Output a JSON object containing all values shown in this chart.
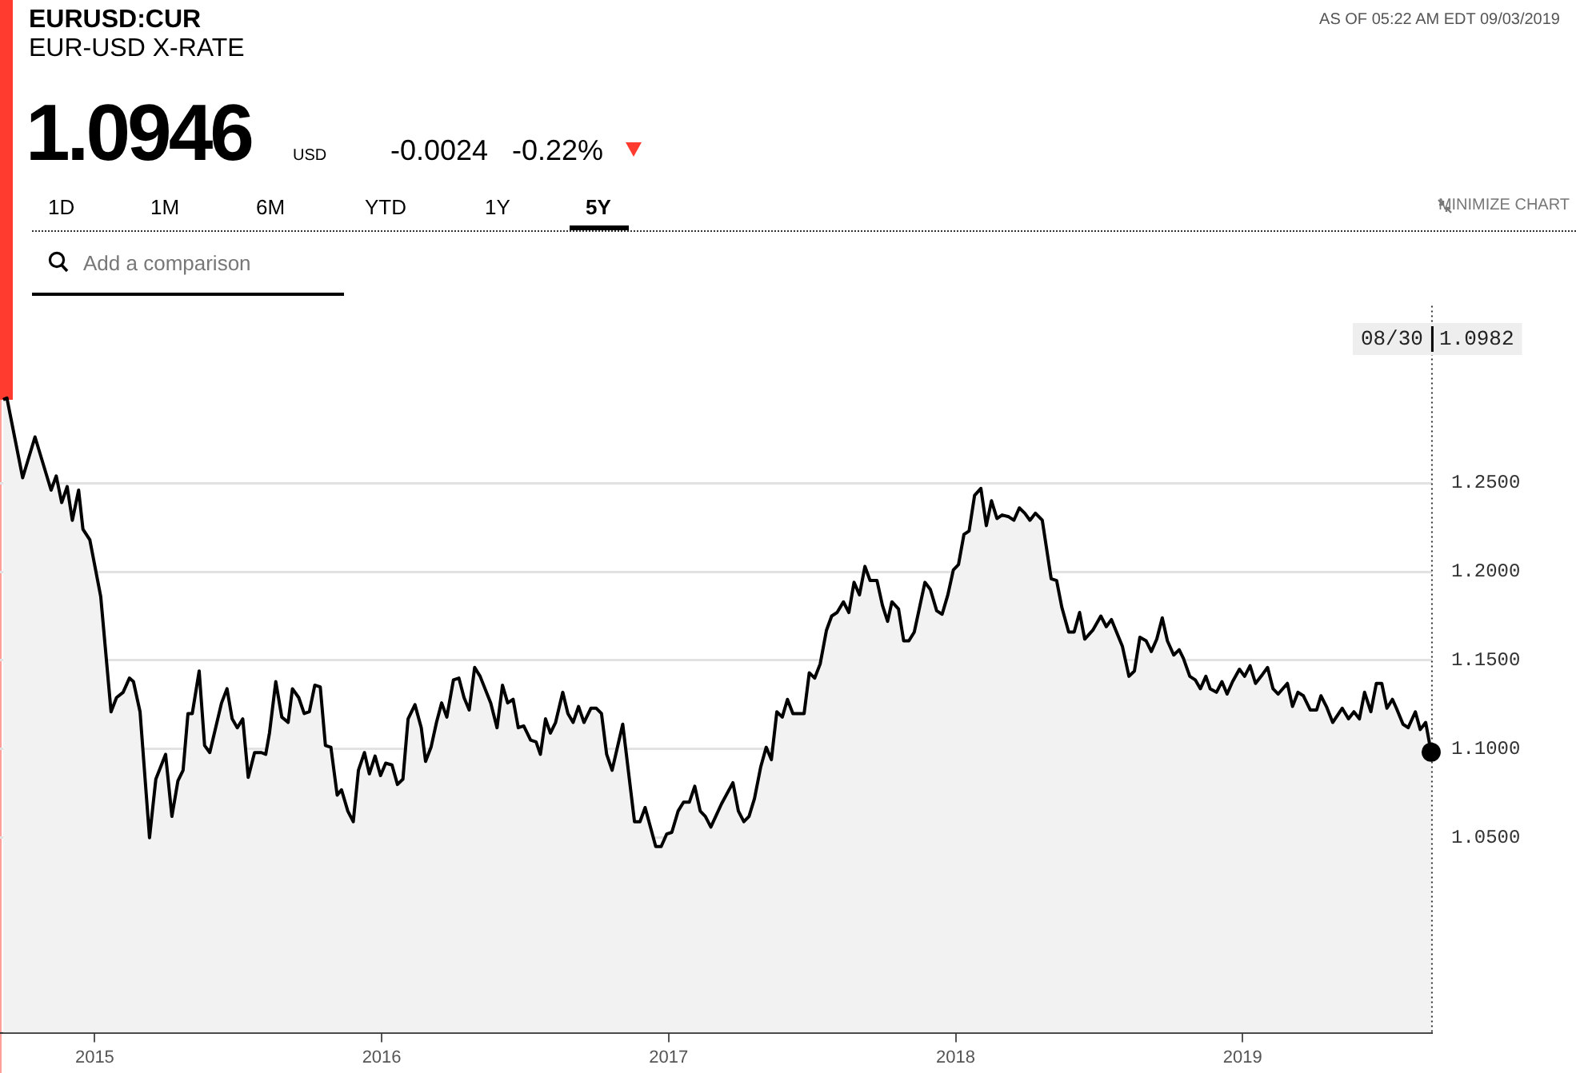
{
  "chart_data": {
    "type": "area",
    "title": "EURUSD:CUR",
    "subtitle": "EUR-USD X-RATE",
    "annotations": [
      "AS OF 05:22 AM EDT 09/03/2019",
      "1.0946",
      "USD",
      "-0.0024",
      "-0.22%",
      "1D",
      "1M",
      "6M",
      "YTD",
      "1Y",
      "5Y",
      "MINIMIZE CHART",
      "Add a comparison",
      "08/30 1.0982"
    ],
    "x": [
      2014.681,
      2014.694,
      2014.749,
      2014.792,
      2014.848,
      2014.866,
      2014.885,
      2014.904,
      2014.922,
      2014.944,
      2014.959,
      2014.983,
      2015.021,
      2015.057,
      2015.076,
      2015.099,
      2015.121,
      2015.135,
      2015.158,
      2015.191,
      2015.213,
      2015.247,
      2015.269,
      2015.29,
      2015.308,
      2015.325,
      2015.34,
      2015.364,
      2015.383,
      2015.401,
      2015.442,
      2015.461,
      2015.479,
      2015.497,
      2015.516,
      2015.535,
      2015.557,
      2015.581,
      2015.596,
      2015.609,
      2015.631,
      2015.652,
      2015.674,
      2015.689,
      2015.711,
      2015.73,
      2015.748,
      2015.767,
      2015.786,
      2015.804,
      2015.823,
      2015.845,
      2015.86,
      2015.882,
      2015.901,
      2015.919,
      2015.94,
      2015.957,
      2015.977,
      2015.996,
      2016.014,
      2016.036,
      2016.055,
      2016.074,
      2016.092,
      2016.116,
      2016.138,
      2016.153,
      2016.172,
      2016.191,
      2016.209,
      2016.227,
      2016.25,
      2016.269,
      2016.287,
      2016.305,
      2016.324,
      2016.343,
      2016.38,
      2016.402,
      2016.421,
      2016.439,
      2016.458,
      2016.476,
      2016.495,
      2016.519,
      2016.538,
      2016.553,
      2016.571,
      2016.588,
      2016.606,
      2016.631,
      2016.649,
      2016.667,
      2016.686,
      2016.705,
      2016.729,
      2016.748,
      2016.766,
      2016.784,
      2016.803,
      2016.84,
      2016.881,
      2016.9,
      2016.918,
      2016.955,
      2016.974,
      2016.993,
      2017.011,
      2017.033,
      2017.052,
      2017.072,
      2017.091,
      2017.11,
      2017.128,
      2017.147,
      2017.184,
      2017.224,
      2017.243,
      2017.262,
      2017.28,
      2017.299,
      2017.321,
      2017.34,
      2017.358,
      2017.377,
      2017.396,
      2017.414,
      2017.433,
      2017.472,
      2017.49,
      2017.509,
      2017.528,
      2017.55,
      2017.568,
      2017.587,
      2017.609,
      2017.628,
      2017.646,
      2017.665,
      2017.684,
      2017.702,
      2017.726,
      2017.745,
      2017.763,
      2017.778,
      2017.801,
      2017.819,
      2017.837,
      2017.856,
      2017.893,
      2017.912,
      2017.934,
      2017.953,
      2017.973,
      2017.992,
      2018.01,
      2018.029,
      2018.047,
      2018.066,
      2018.088,
      2018.107,
      2018.125,
      2018.144,
      2018.162,
      2018.185,
      2018.203,
      2018.222,
      2018.241,
      2018.259,
      2018.278,
      2018.302,
      2018.333,
      2018.352,
      2018.37,
      2018.394,
      2018.413,
      2018.432,
      2018.45,
      2018.478,
      2018.506,
      2018.525,
      2018.543,
      2018.581,
      2018.604,
      2018.623,
      2018.642,
      2018.664,
      2018.682,
      2018.701,
      2018.72,
      2018.738,
      2018.76,
      2018.779,
      2018.794,
      2018.816,
      2018.835,
      2018.853,
      2018.872,
      2018.887,
      2018.909,
      2018.928,
      2018.946,
      2018.965,
      2018.989,
      2019.007,
      2019.026,
      2019.045,
      2019.069,
      2019.087,
      2019.106,
      2019.124,
      2019.156,
      2019.174,
      2019.193,
      2019.212,
      2019.236,
      2019.258,
      2019.273,
      2019.292,
      2019.314,
      2019.347,
      2019.369,
      2019.388,
      2019.407,
      2019.425,
      2019.447,
      2019.466,
      2019.485,
      2019.503,
      2019.522,
      2019.536,
      2019.559,
      2019.577,
      2019.602,
      2019.619,
      2019.638,
      2019.657
    ],
    "series": [
      {
        "color": "#000000",
        "values": [
          1.297,
          1.298,
          1.253,
          1.276,
          1.246,
          1.254,
          1.239,
          1.248,
          1.229,
          1.246,
          1.224,
          1.218,
          1.186,
          1.121,
          1.129,
          1.132,
          1.14,
          1.138,
          1.121,
          1.05,
          1.083,
          1.097,
          1.062,
          1.082,
          1.088,
          1.12,
          1.12,
          1.144,
          1.102,
          1.098,
          1.126,
          1.134,
          1.117,
          1.112,
          1.117,
          1.084,
          1.098,
          1.098,
          1.097,
          1.109,
          1.138,
          1.118,
          1.115,
          1.134,
          1.129,
          1.12,
          1.121,
          1.136,
          1.135,
          1.102,
          1.101,
          1.074,
          1.077,
          1.065,
          1.059,
          1.088,
          1.098,
          1.086,
          1.096,
          1.085,
          1.092,
          1.091,
          1.08,
          1.083,
          1.117,
          1.125,
          1.112,
          1.093,
          1.101,
          1.115,
          1.126,
          1.118,
          1.139,
          1.14,
          1.129,
          1.122,
          1.146,
          1.141,
          1.126,
          1.112,
          1.136,
          1.126,
          1.128,
          1.112,
          1.113,
          1.105,
          1.104,
          1.097,
          1.117,
          1.109,
          1.115,
          1.132,
          1.12,
          1.115,
          1.124,
          1.115,
          1.123,
          1.123,
          1.12,
          1.097,
          1.088,
          1.114,
          1.059,
          1.059,
          1.067,
          1.045,
          1.045,
          1.052,
          1.053,
          1.065,
          1.07,
          1.07,
          1.079,
          1.065,
          1.062,
          1.056,
          1.069,
          1.081,
          1.065,
          1.059,
          1.062,
          1.072,
          1.09,
          1.101,
          1.094,
          1.121,
          1.118,
          1.128,
          1.12,
          1.12,
          1.143,
          1.14,
          1.148,
          1.167,
          1.175,
          1.177,
          1.183,
          1.177,
          1.194,
          1.187,
          1.203,
          1.195,
          1.195,
          1.181,
          1.172,
          1.183,
          1.179,
          1.161,
          1.161,
          1.166,
          1.194,
          1.19,
          1.178,
          1.176,
          1.187,
          1.201,
          1.204,
          1.221,
          1.223,
          1.243,
          1.247,
          1.226,
          1.24,
          1.23,
          1.232,
          1.231,
          1.229,
          1.236,
          1.233,
          1.229,
          1.233,
          1.229,
          1.196,
          1.195,
          1.18,
          1.166,
          1.166,
          1.177,
          1.162,
          1.167,
          1.175,
          1.169,
          1.173,
          1.158,
          1.141,
          1.144,
          1.163,
          1.161,
          1.155,
          1.162,
          1.174,
          1.161,
          1.153,
          1.156,
          1.151,
          1.141,
          1.139,
          1.134,
          1.141,
          1.134,
          1.132,
          1.138,
          1.131,
          1.138,
          1.145,
          1.141,
          1.147,
          1.137,
          1.142,
          1.146,
          1.134,
          1.131,
          1.137,
          1.124,
          1.132,
          1.13,
          1.122,
          1.122,
          1.13,
          1.124,
          1.115,
          1.123,
          1.117,
          1.121,
          1.117,
          1.132,
          1.121,
          1.137,
          1.137,
          1.123,
          1.128,
          1.123,
          1.114,
          1.112,
          1.121,
          1.111,
          1.115,
          1.0982
        ]
      }
    ],
    "xlim": [
      2014.67,
      2019.66
    ],
    "xticks": [
      2015,
      2016,
      2017,
      2018,
      2019
    ],
    "ylim": [
      0.94,
      1.35
    ],
    "yticks": [
      {
        "value": 1.05,
        "label": "1.0500"
      },
      {
        "value": 1.1,
        "label": "1.1000"
      },
      {
        "value": 1.15,
        "label": "1.1500"
      },
      {
        "value": 1.2,
        "label": "1.2000"
      },
      {
        "value": 1.25,
        "label": "1.2500"
      }
    ],
    "grid": "y",
    "legend": false,
    "marker": "none",
    "line_style": "solid"
  }
}
